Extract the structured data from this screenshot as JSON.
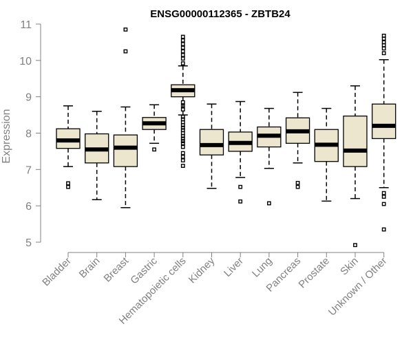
{
  "chart_data": {
    "type": "boxplot",
    "title": "ENSG00000112365 - ZBTB24",
    "xlabel": "",
    "ylabel": "Expression",
    "ylim": [
      5,
      11
    ],
    "yticks": [
      5,
      6,
      7,
      8,
      9,
      10,
      11
    ],
    "box_color": "#EDE6CF",
    "axis_color": "#808080",
    "categories": [
      "Bladder",
      "Brain",
      "Breast",
      "Gastric",
      "Hematopoietic cells",
      "Kidney",
      "Liver",
      "Lung",
      "Pancreas",
      "Prostate",
      "Skin",
      "Unknown / Other"
    ],
    "series": [
      {
        "name": "Bladder",
        "whisker_low": 7.08,
        "q1": 7.58,
        "median": 7.8,
        "q3": 8.12,
        "whisker_high": 8.75,
        "outliers": [
          6.62,
          6.52
        ]
      },
      {
        "name": "Brain",
        "whisker_low": 6.17,
        "q1": 7.18,
        "median": 7.55,
        "q3": 7.98,
        "whisker_high": 8.6,
        "outliers": []
      },
      {
        "name": "Breast",
        "whisker_low": 5.95,
        "q1": 7.08,
        "median": 7.6,
        "q3": 7.95,
        "whisker_high": 8.72,
        "outliers": [
          10.85,
          10.25
        ]
      },
      {
        "name": "Gastric",
        "whisker_low": 7.72,
        "q1": 8.1,
        "median": 8.27,
        "q3": 8.43,
        "whisker_high": 8.78,
        "outliers": [
          7.55
        ]
      },
      {
        "name": "Hematopoietic cells",
        "whisker_low": 8.5,
        "q1": 9.0,
        "median": 9.18,
        "q3": 9.33,
        "whisker_high": 9.85,
        "outliers": [
          10.65,
          10.55,
          10.45,
          10.35,
          10.25,
          10.15,
          10.05,
          9.92,
          8.85,
          8.75,
          8.65,
          8.45,
          8.38,
          8.3,
          8.22,
          8.15,
          8.08,
          8.0,
          7.92,
          7.85,
          7.78,
          7.72,
          7.62,
          7.45,
          7.35,
          7.25,
          7.1
        ]
      },
      {
        "name": "Kidney",
        "whisker_low": 6.48,
        "q1": 7.4,
        "median": 7.67,
        "q3": 8.1,
        "whisker_high": 8.8,
        "outliers": []
      },
      {
        "name": "Liver",
        "whisker_low": 6.78,
        "q1": 7.5,
        "median": 7.73,
        "q3": 8.03,
        "whisker_high": 8.87,
        "outliers": [
          6.52,
          6.12
        ]
      },
      {
        "name": "Lung",
        "whisker_low": 7.03,
        "q1": 7.62,
        "median": 7.93,
        "q3": 8.17,
        "whisker_high": 8.68,
        "outliers": [
          6.07
        ]
      },
      {
        "name": "Pancreas",
        "whisker_low": 7.18,
        "q1": 7.72,
        "median": 8.05,
        "q3": 8.42,
        "whisker_high": 9.12,
        "outliers": [
          6.63,
          6.52
        ]
      },
      {
        "name": "Prostate",
        "whisker_low": 6.13,
        "q1": 7.22,
        "median": 7.68,
        "q3": 8.1,
        "whisker_high": 8.68,
        "outliers": []
      },
      {
        "name": "Skin",
        "whisker_low": 6.2,
        "q1": 7.08,
        "median": 7.52,
        "q3": 8.47,
        "whisker_high": 9.3,
        "outliers": [
          4.92
        ]
      },
      {
        "name": "Unknown / Other",
        "whisker_low": 6.5,
        "q1": 7.85,
        "median": 8.2,
        "q3": 8.8,
        "whisker_high": 10.02,
        "outliers": [
          10.68,
          10.6,
          10.5,
          10.42,
          10.33,
          10.2,
          6.35,
          6.25,
          6.05,
          5.35
        ]
      }
    ]
  }
}
